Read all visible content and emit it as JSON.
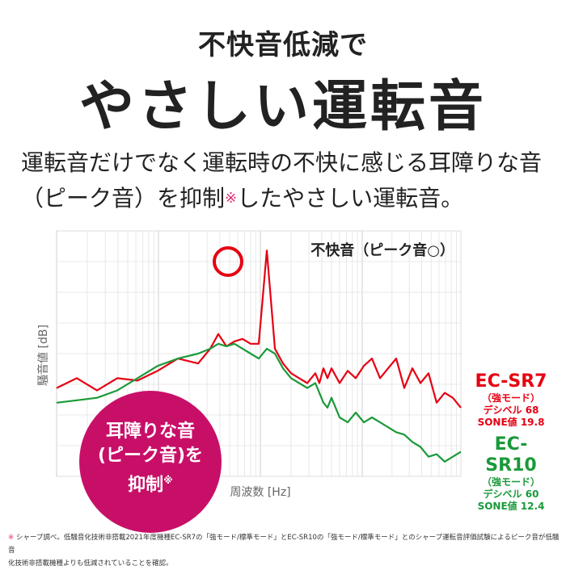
{
  "heading": {
    "subtitle": "不快音低減で",
    "title": "やさしい運転音"
  },
  "description": {
    "line1": "運転音だけでなく運転時の不快に感じる耳障りな音",
    "line2_a": "（ピーク音）を抑制",
    "line2_mark": "※",
    "line2_b": "したやさしい運転音。"
  },
  "badge": {
    "line1": "耳障りな音",
    "line2": "(ピーク音)を",
    "line3": "抑制",
    "mark": "※"
  },
  "legend": {
    "sr7": {
      "model": "EC-SR7",
      "mode": "（強モード）",
      "decibel": "デシベル 68",
      "sone": "SONE値 19.8",
      "color": "#e60012"
    },
    "sr10": {
      "model": "EC-SR10",
      "mode": "（強モード）",
      "decibel": "デシベル 60",
      "sone": "SONE値 12.4",
      "color": "#1a9a3a"
    }
  },
  "footnote": {
    "mark": "※",
    "line1": "シャープ調べ。低騒音化技術非搭載2021年度機種EC-SR7の「強モード/標準モード」とEC-SR10の「強モード/標準モード」とのシャープ運転音評価試験によるピーク音が低騒音",
    "line2": "化技術非搭載機種よりも低減されていることを確認。"
  },
  "chart_data": {
    "type": "line",
    "title": "",
    "annotation": "不快音（ピーク音○）",
    "xlabel": "周波数 [Hz]",
    "ylabel": "騒音値 [dB]",
    "xlim": [
      0,
      100
    ],
    "ylim": [
      0,
      100
    ],
    "grid": true,
    "x": [
      0,
      5,
      10,
      15,
      20,
      25,
      30,
      35,
      38,
      40,
      42,
      44,
      46,
      48,
      50,
      52,
      54,
      56,
      58,
      60,
      62,
      64,
      65,
      66,
      67,
      68,
      70,
      72,
      74,
      76,
      78,
      80,
      82,
      84,
      86,
      88,
      90,
      92,
      94,
      96,
      98,
      100
    ],
    "series": [
      {
        "name": "EC-SR7",
        "color": "#e60012",
        "values": [
          36,
          40,
          35,
          40,
          39,
          43,
          48,
          46,
          52,
          58,
          53,
          55,
          56,
          54,
          54,
          92,
          52,
          46,
          42,
          40,
          38,
          42,
          38,
          44,
          40,
          44,
          38,
          43,
          40,
          45,
          48,
          40,
          44,
          48,
          36,
          44,
          38,
          42,
          30,
          34,
          32,
          28
        ]
      },
      {
        "name": "EC-SR10",
        "color": "#1a9a3a",
        "values": [
          30,
          31,
          32,
          35,
          40,
          45,
          48,
          50,
          52,
          54,
          53,
          54,
          52,
          50,
          48,
          52,
          50,
          44,
          40,
          38,
          36,
          38,
          34,
          30,
          28,
          32,
          24,
          22,
          26,
          22,
          24,
          22,
          20,
          18,
          17,
          14,
          12,
          8,
          9,
          6,
          8,
          10
        ]
      }
    ]
  }
}
